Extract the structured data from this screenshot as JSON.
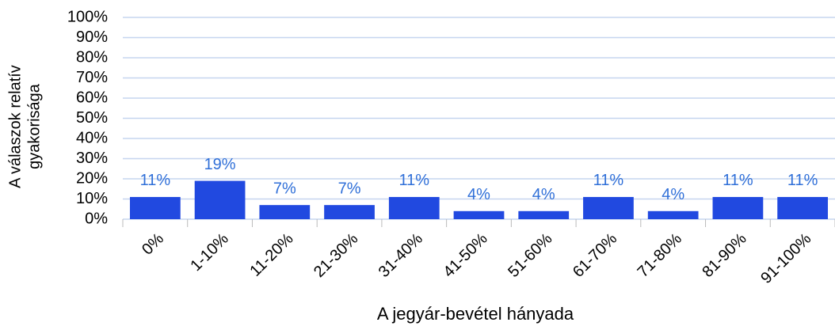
{
  "chart_data": {
    "type": "bar",
    "ylabel": [
      "A válaszok relatív",
      "gyakorisága"
    ],
    "xlabel": "A jegyár-bevétel hányada",
    "categories": [
      "0%",
      "1-10%",
      "11-20%",
      "21-30%",
      "31-40%",
      "41-50%",
      "51-60%",
      "61-70%",
      "71-80%",
      "81-90%",
      "91-100%"
    ],
    "values": [
      11,
      19,
      7,
      7,
      11,
      4,
      4,
      11,
      4,
      11,
      11
    ],
    "value_labels": [
      "11%",
      "19%",
      "7%",
      "7%",
      "11%",
      "4%",
      "4%",
      "11%",
      "4%",
      "11%",
      "11%"
    ],
    "color": "#2149e0",
    "ylim": [
      0,
      100
    ],
    "yticks": [
      {
        "value": 0,
        "label": "0%"
      },
      {
        "value": 10,
        "label": "10%"
      },
      {
        "value": 20,
        "label": "20%"
      },
      {
        "value": 30,
        "label": "30%"
      },
      {
        "value": 40,
        "label": "40%"
      },
      {
        "value": 50,
        "label": "50%"
      },
      {
        "value": 60,
        "label": "60%"
      },
      {
        "value": 70,
        "label": "70%"
      },
      {
        "value": 80,
        "label": "80%"
      },
      {
        "value": 90,
        "label": "90%"
      },
      {
        "value": 100,
        "label": "100%"
      }
    ],
    "grid": true
  }
}
